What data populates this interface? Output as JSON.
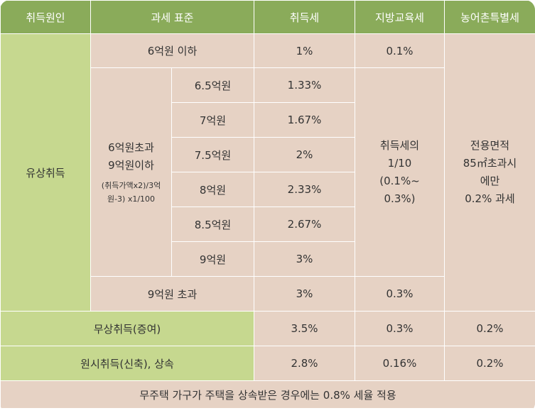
{
  "header": [
    "취득원인",
    "과세 표준",
    "취득세",
    "지방교육세",
    "농어촌특별세"
  ],
  "rows": {
    "paid_label": "유상취득",
    "tier1": {
      "base": "6억원 이하",
      "tax": "1%",
      "edu": "0.1%"
    },
    "mid_label_line1": "6억원초과",
    "mid_label_line2": "9억원이하",
    "mid_formula_line1": "(취득가액x2)/3억",
    "mid_formula_line2": "원-3) x1/100",
    "mid_rows": [
      {
        "base": "6.5억원",
        "tax": "1.33%"
      },
      {
        "base": "7억원",
        "tax": "1.67%"
      },
      {
        "base": "7.5억원",
        "tax": "2%"
      },
      {
        "base": "8억원",
        "tax": "2.33%"
      },
      {
        "base": "8.5억원",
        "tax": "2.67%"
      },
      {
        "base": "9억원",
        "tax": "3%"
      }
    ],
    "mid_edu_line1": "취득세의",
    "mid_edu_line2": "1/10",
    "mid_edu_line3": "(0.1%~",
    "mid_edu_line4": "0.3%)",
    "rural_line1": "전용면적",
    "rural_line2": "85㎡초과시",
    "rural_line3": "에만",
    "rural_line4": "0.2% 과세",
    "tier3": {
      "base": "9억원 초과",
      "tax": "3%",
      "edu": "0.3%"
    },
    "gift": {
      "label": "무상취득(증여)",
      "tax": "3.5%",
      "edu": "0.3%",
      "rural": "0.2%"
    },
    "original": {
      "label": "원시취득(신축), 상속",
      "tax": "2.8%",
      "edu": "0.16%",
      "rural": "0.2%"
    }
  },
  "footer": "무주택 가구가 주택을 상속받은 경우에는 0.8% 세율 적용",
  "colors": {
    "header": "#8aab5a",
    "green": "#c6d88f",
    "beige": "#e6d2c4"
  }
}
